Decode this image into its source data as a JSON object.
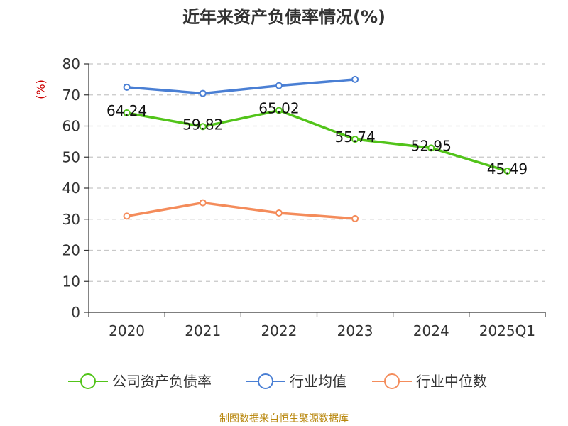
{
  "chart_data": {
    "type": "line",
    "title": "近年来资产负债率情况(%)",
    "ylabel": "(%)",
    "categories": [
      "2020",
      "2021",
      "2022",
      "2023",
      "2024",
      "2025Q1"
    ],
    "ylim": [
      0,
      80
    ],
    "yticks": [
      0,
      10,
      20,
      30,
      40,
      50,
      60,
      70,
      80
    ],
    "grid": true,
    "legend_position": "bottom",
    "series": [
      {
        "name": "公司资产负债率",
        "color": "#52c41a",
        "values": [
          64.24,
          59.82,
          65.02,
          55.74,
          52.95,
          45.49
        ],
        "labels": [
          "64.24",
          "59.82",
          "65.02",
          "55.74",
          "52.95",
          "45.49"
        ]
      },
      {
        "name": "行业均值",
        "color": "#4a7fd4",
        "values": [
          72.5,
          70.5,
          73.0,
          75.0,
          null,
          null
        ]
      },
      {
        "name": "行业中位数",
        "color": "#f48c5b",
        "values": [
          31.0,
          35.3,
          32.0,
          30.2,
          null,
          null
        ]
      }
    ]
  },
  "source": "制图数据来自恒生聚源数据库"
}
